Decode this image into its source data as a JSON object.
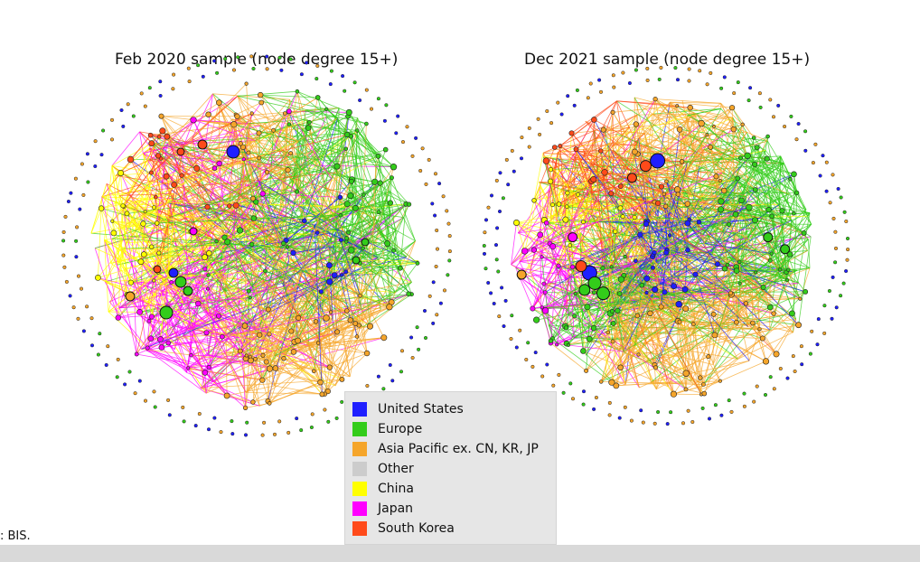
{
  "panels": [
    {
      "title": "Feb 2020 sample (node degree 15+)"
    },
    {
      "title": "Dec 2021 sample (node degree 15+)"
    }
  ],
  "legend": [
    {
      "label": "United States",
      "color": "#1f1fff"
    },
    {
      "label": "Europe",
      "color": "#33cc1a"
    },
    {
      "label": "Asia Pacific ex. CN, KR, JP",
      "color": "#f5a52a"
    },
    {
      "label": "Other",
      "color": "#cccccc"
    },
    {
      "label": "China",
      "color": "#ffff00"
    },
    {
      "label": "Japan",
      "color": "#ff00ff"
    },
    {
      "label": "South Korea",
      "color": "#ff4a1a"
    }
  ],
  "source_note": ": BIS."
}
